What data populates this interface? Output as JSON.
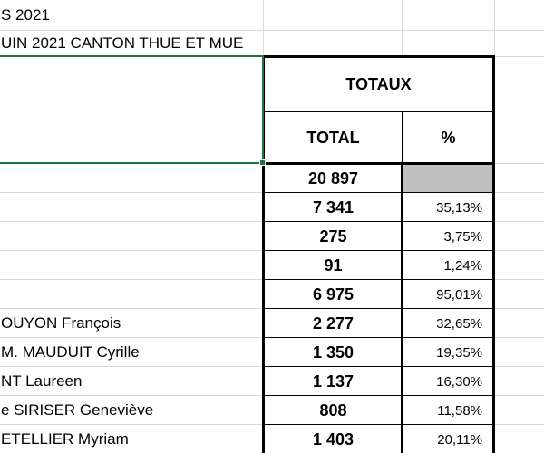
{
  "sheet": {
    "title_line1": "S 2021",
    "title_line2": "UIN 2021 CANTON THUE ET MUE",
    "header_totaux": "TOTAUX",
    "header_total": "TOTAL",
    "header_pct": "%",
    "rows": [
      {
        "label": "",
        "total": "20 897",
        "pct": ""
      },
      {
        "label": "",
        "total": "7 341",
        "pct": "35,13%"
      },
      {
        "label": "",
        "total": "275",
        "pct": "3,75%"
      },
      {
        "label": "",
        "total": "91",
        "pct": "1,24%"
      },
      {
        "label": "",
        "total": "6 975",
        "pct": "95,01%"
      },
      {
        "label": "OUYON François",
        "total": "2 277",
        "pct": "32,65%"
      },
      {
        "label": "M. MAUDUIT Cyrille",
        "total": "1 350",
        "pct": "19,35%"
      },
      {
        "label": "NT Laureen",
        "total": "1 137",
        "pct": "16,30%"
      },
      {
        "label": "e SIRISER Geneviève",
        "total": "808",
        "pct": "11,58%"
      },
      {
        "label": "ETELLIER Myriam",
        "total": "1 403",
        "pct": "20,11%"
      }
    ]
  },
  "colors": {
    "grid": "#d9d9d9",
    "border": "#000000",
    "selection": "#217346",
    "gray_cell": "#c0c0c0"
  }
}
